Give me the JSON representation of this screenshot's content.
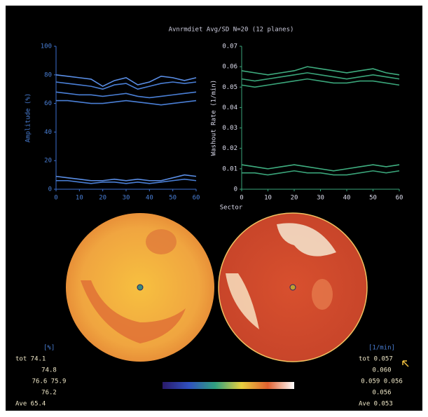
{
  "chart_data": [
    {
      "type": "line",
      "title": "Avnrmdiet  Avg/SD  N=20 (12 planes)",
      "ylabel": "Amplitude (%)",
      "x": [
        0,
        5,
        10,
        15,
        20,
        25,
        30,
        35,
        40,
        45,
        50,
        55,
        60
      ],
      "xlim": [
        0,
        60
      ],
      "xticks": [
        0,
        10,
        20,
        30,
        40,
        50,
        60
      ],
      "ylim": [
        0,
        100
      ],
      "yticks": [
        0,
        20,
        40,
        60,
        80,
        100
      ],
      "series": [
        {
          "color": "#5a8ee6",
          "values": [
            80,
            79,
            78,
            77,
            72,
            76,
            78,
            73,
            75,
            79,
            78,
            76,
            78
          ]
        },
        {
          "color": "#4a7fd6",
          "values": [
            75,
            74,
            73,
            72,
            70,
            73,
            74,
            70,
            72,
            74,
            75,
            74,
            75
          ]
        },
        {
          "color": "#4a7fd6",
          "values": [
            68,
            67,
            66,
            66,
            65,
            66,
            67,
            65,
            64,
            65,
            66,
            67,
            68
          ]
        },
        {
          "color": "#4a7fd6",
          "values": [
            62,
            62,
            61,
            60,
            60,
            61,
            62,
            61,
            60,
            59,
            60,
            61,
            62
          ]
        },
        {
          "color": "#5a8ee6",
          "values": [
            9,
            8,
            7,
            6,
            6,
            7,
            6,
            7,
            6,
            6,
            8,
            10,
            9
          ]
        },
        {
          "color": "#4a7fd6",
          "values": [
            6,
            6,
            5,
            4,
            5,
            5,
            4,
            5,
            4,
            5,
            6,
            7,
            6
          ]
        }
      ]
    },
    {
      "type": "line",
      "ylabel": "Washout Rate (1/min)",
      "xlabel": "Sector",
      "x": [
        0,
        5,
        10,
        15,
        20,
        25,
        30,
        35,
        40,
        45,
        50,
        55,
        60
      ],
      "xlim": [
        0,
        60
      ],
      "xticks": [
        0,
        10,
        20,
        30,
        40,
        50,
        60
      ],
      "ylim": [
        0,
        0.07
      ],
      "yticks": [
        0,
        0.01,
        0.02,
        0.03,
        0.04,
        0.05,
        0.06,
        0.07
      ],
      "series": [
        {
          "color": "#3fae80",
          "values": [
            0.058,
            0.057,
            0.056,
            0.057,
            0.058,
            0.06,
            0.059,
            0.058,
            0.057,
            0.058,
            0.059,
            0.057,
            0.056
          ]
        },
        {
          "color": "#3aa57a",
          "values": [
            0.054,
            0.053,
            0.054,
            0.055,
            0.056,
            0.057,
            0.056,
            0.055,
            0.054,
            0.055,
            0.056,
            0.055,
            0.054
          ]
        },
        {
          "color": "#3aa57a",
          "values": [
            0.051,
            0.05,
            0.051,
            0.052,
            0.053,
            0.054,
            0.053,
            0.052,
            0.052,
            0.053,
            0.053,
            0.052,
            0.051
          ]
        },
        {
          "color": "#3fae80",
          "values": [
            0.012,
            0.011,
            0.01,
            0.011,
            0.012,
            0.011,
            0.01,
            0.009,
            0.01,
            0.011,
            0.012,
            0.011,
            0.012
          ]
        },
        {
          "color": "#3aa57a",
          "values": [
            0.008,
            0.008,
            0.007,
            0.008,
            0.009,
            0.008,
            0.008,
            0.007,
            0.007,
            0.008,
            0.009,
            0.008,
            0.009
          ]
        }
      ]
    }
  ],
  "stats_left": [
    "[%]",
    "tot  74.1",
    "74.8",
    "76.6   75.9",
    "76.2",
    "Ave  65.4"
  ],
  "stats_right": [
    "[1/min]",
    "tot 0.057",
    "0.060",
    "0.059   0.056",
    "0.056",
    "Ave 0.053"
  ]
}
